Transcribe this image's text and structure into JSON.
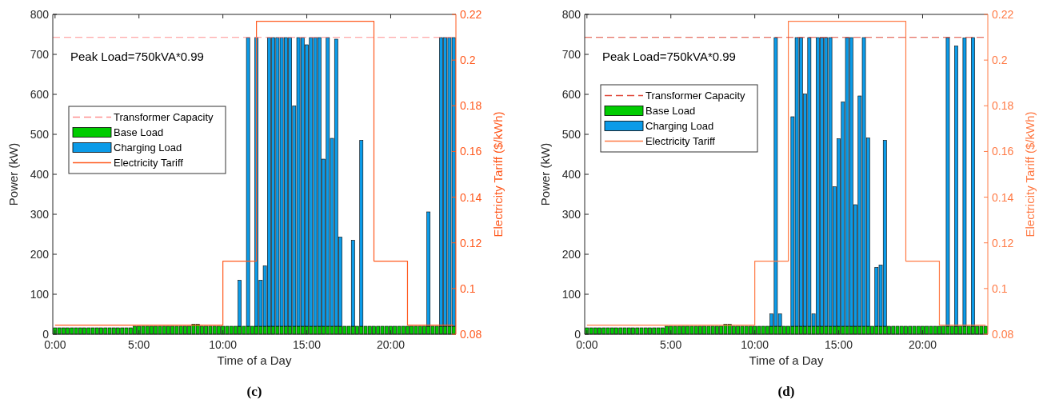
{
  "chart_data": [
    {
      "type": "bar",
      "title": "(c)",
      "xlabel": "Time of a Day",
      "ylabel": "Power (kW)",
      "y2label": "Electricity Tariff ($/kWh)",
      "stacked": true,
      "legend": "left",
      "annotations": [
        "Peak Load=750kVA*0.99"
      ],
      "categories": [
        "0:00",
        null,
        null,
        null,
        null,
        null,
        null,
        null,
        null,
        null,
        null,
        null,
        null,
        null,
        null,
        null,
        null,
        null,
        null,
        null,
        "5:00",
        null,
        null,
        null,
        null,
        null,
        null,
        null,
        null,
        null,
        null,
        null,
        null,
        null,
        null,
        null,
        null,
        null,
        null,
        null,
        "10:00",
        null,
        null,
        null,
        null,
        null,
        null,
        null,
        null,
        null,
        null,
        null,
        null,
        null,
        null,
        null,
        null,
        null,
        null,
        null,
        "15:00",
        null,
        null,
        null,
        null,
        null,
        null,
        null,
        null,
        null,
        null,
        null,
        null,
        null,
        null,
        null,
        null,
        null,
        null,
        null,
        "20:00",
        null,
        null,
        null,
        null,
        null,
        null,
        null,
        null,
        null,
        null,
        null,
        null,
        null,
        null,
        null
      ],
      "ylim": [
        0,
        800
      ],
      "yticks": [
        0,
        100,
        200,
        300,
        400,
        500,
        600,
        700,
        800
      ],
      "y2lim": [
        0.08,
        0.22
      ],
      "y2ticks": [
        0.08,
        0.1,
        0.12,
        0.14,
        0.16,
        0.18,
        0.2,
        0.22
      ],
      "ref_lines": [
        {
          "axis": "y",
          "value": 742.5,
          "label": "Transformer Capacity",
          "color": "#ff9090",
          "line_style": "dashed"
        }
      ],
      "series": [
        {
          "name": "Base Load",
          "color": "#00cc00",
          "values": [
            16,
            16,
            16,
            16,
            16,
            16,
            16,
            16,
            16,
            16,
            16,
            16,
            16,
            16,
            16,
            16,
            16,
            16,
            16,
            20,
            20,
            20,
            20,
            20,
            20,
            20,
            20,
            20,
            20,
            20,
            20,
            20,
            20,
            25,
            25,
            20,
            20,
            20,
            20,
            20,
            20,
            20,
            20,
            20,
            20,
            20,
            20,
            20,
            20,
            20,
            20,
            20,
            20,
            20,
            20,
            20,
            20,
            20,
            20,
            20,
            20,
            20,
            20,
            20,
            20,
            20,
            20,
            20,
            20,
            20,
            20,
            20,
            20,
            20,
            20,
            20,
            20,
            20,
            20,
            20,
            20,
            20,
            20,
            20,
            20,
            20,
            20,
            20,
            20,
            20,
            20,
            20,
            20,
            20,
            20,
            20
          ]
        },
        {
          "name": "Charging Load",
          "color": "#0b9be8",
          "values": [
            0,
            0,
            0,
            0,
            0,
            0,
            0,
            0,
            0,
            0,
            0,
            0,
            0,
            0,
            0,
            0,
            0,
            0,
            0,
            0,
            0,
            0,
            0,
            0,
            0,
            0,
            0,
            0,
            0,
            0,
            0,
            0,
            0,
            0,
            0,
            0,
            0,
            0,
            0,
            0,
            0,
            0,
            0,
            0,
            115,
            0,
            722,
            0,
            722,
            115,
            151,
            722,
            722,
            722,
            722,
            722,
            722,
            551,
            722,
            722,
            704,
            722,
            722,
            722,
            418,
            722,
            470,
            718,
            223,
            0,
            0,
            215,
            0,
            465,
            0,
            0,
            0,
            0,
            0,
            0,
            0,
            0,
            0,
            0,
            0,
            0,
            0,
            0,
            0,
            286,
            0,
            0,
            722,
            722,
            722,
            722
          ]
        },
        {
          "name": "Electricity Tariff",
          "type": "step",
          "axis": "y2",
          "color": "#ff5a1f",
          "line_style": "solid",
          "values": [
            0.084,
            0.084,
            0.084,
            0.084,
            0.084,
            0.084,
            0.084,
            0.084,
            0.084,
            0.084,
            0.084,
            0.084,
            0.084,
            0.084,
            0.084,
            0.084,
            0.084,
            0.084,
            0.084,
            0.084,
            0.084,
            0.084,
            0.084,
            0.084,
            0.084,
            0.084,
            0.084,
            0.084,
            0.084,
            0.084,
            0.084,
            0.084,
            0.084,
            0.084,
            0.084,
            0.084,
            0.084,
            0.084,
            0.084,
            0.084,
            0.112,
            0.112,
            0.112,
            0.112,
            0.112,
            0.112,
            0.112,
            0.112,
            0.217,
            0.217,
            0.217,
            0.217,
            0.217,
            0.217,
            0.217,
            0.217,
            0.217,
            0.217,
            0.217,
            0.217,
            0.217,
            0.217,
            0.217,
            0.217,
            0.217,
            0.217,
            0.217,
            0.217,
            0.217,
            0.217,
            0.217,
            0.217,
            0.217,
            0.217,
            0.217,
            0.217,
            0.112,
            0.112,
            0.112,
            0.112,
            0.112,
            0.112,
            0.112,
            0.112,
            0.084,
            0.084,
            0.084,
            0.084,
            0.084,
            0.084,
            0.084,
            0.084,
            0.084,
            0.084,
            0.084,
            0.084
          ]
        }
      ]
    },
    {
      "type": "bar",
      "title": "(d)",
      "xlabel": "Time of a Day",
      "ylabel": "Power (kW)",
      "y2label": "Electricity Tariff ($/kWh)",
      "stacked": true,
      "legend": "top left",
      "annotations": [
        "Peak Load=750kVA*0.99"
      ],
      "categories": [
        "0:00",
        null,
        null,
        null,
        null,
        null,
        null,
        null,
        null,
        null,
        null,
        null,
        null,
        null,
        null,
        null,
        null,
        null,
        null,
        null,
        "5:00",
        null,
        null,
        null,
        null,
        null,
        null,
        null,
        null,
        null,
        null,
        null,
        null,
        null,
        null,
        null,
        null,
        null,
        null,
        null,
        "10:00",
        null,
        null,
        null,
        null,
        null,
        null,
        null,
        null,
        null,
        null,
        null,
        null,
        null,
        null,
        null,
        null,
        null,
        null,
        null,
        "15:00",
        null,
        null,
        null,
        null,
        null,
        null,
        null,
        null,
        null,
        null,
        null,
        null,
        null,
        null,
        null,
        null,
        null,
        null,
        null,
        "20:00",
        null,
        null,
        null,
        null,
        null,
        null,
        null,
        null,
        null,
        null,
        null,
        null,
        null,
        null,
        null
      ],
      "ylim": [
        0,
        800
      ],
      "yticks": [
        0,
        100,
        200,
        300,
        400,
        500,
        600,
        700,
        800
      ],
      "y2lim": [
        0.08,
        0.22
      ],
      "y2ticks": [
        0.08,
        0.1,
        0.12,
        0.14,
        0.16,
        0.18,
        0.2,
        0.22
      ],
      "ref_lines": [
        {
          "axis": "y",
          "value": 742.5,
          "label": "Transformer Capacity",
          "color": "#e0483a",
          "line_style": "dashed"
        }
      ],
      "series": [
        {
          "name": "Base Load",
          "color": "#00cc00",
          "values": [
            16,
            16,
            16,
            16,
            16,
            16,
            16,
            16,
            16,
            16,
            16,
            16,
            16,
            16,
            16,
            16,
            16,
            16,
            16,
            20,
            20,
            20,
            20,
            20,
            20,
            20,
            20,
            20,
            20,
            20,
            20,
            20,
            20,
            25,
            25,
            20,
            20,
            20,
            20,
            20,
            20,
            20,
            20,
            20,
            20,
            20,
            20,
            20,
            20,
            20,
            20,
            20,
            20,
            20,
            20,
            20,
            20,
            20,
            20,
            20,
            20,
            20,
            20,
            20,
            20,
            20,
            20,
            20,
            20,
            20,
            20,
            20,
            20,
            20,
            20,
            20,
            20,
            20,
            20,
            20,
            20,
            20,
            20,
            20,
            20,
            20,
            20,
            20,
            20,
            20,
            20,
            20,
            20,
            20,
            20,
            20
          ]
        },
        {
          "name": "Charging Load",
          "color": "#0b9be8",
          "values": [
            0,
            0,
            0,
            0,
            0,
            0,
            0,
            0,
            0,
            0,
            0,
            0,
            0,
            0,
            0,
            0,
            0,
            0,
            0,
            0,
            0,
            0,
            0,
            0,
            0,
            0,
            0,
            0,
            0,
            0,
            0,
            0,
            0,
            0,
            0,
            0,
            0,
            0,
            0,
            0,
            0,
            0,
            0,
            0,
            31,
            722,
            31,
            0,
            0,
            524,
            722,
            722,
            581,
            722,
            31,
            722,
            722,
            722,
            722,
            349,
            469,
            561,
            722,
            722,
            304,
            576,
            722,
            471,
            0,
            147,
            153,
            465,
            0,
            0,
            0,
            0,
            0,
            0,
            0,
            0,
            0,
            0,
            0,
            0,
            0,
            0,
            722,
            0,
            701,
            0,
            721,
            0,
            722,
            0,
            0,
            0
          ]
        },
        {
          "name": "Electricity Tariff",
          "type": "step",
          "axis": "y2",
          "color": "#ff7a45",
          "line_style": "solid",
          "values": [
            0.084,
            0.084,
            0.084,
            0.084,
            0.084,
            0.084,
            0.084,
            0.084,
            0.084,
            0.084,
            0.084,
            0.084,
            0.084,
            0.084,
            0.084,
            0.084,
            0.084,
            0.084,
            0.084,
            0.084,
            0.084,
            0.084,
            0.084,
            0.084,
            0.084,
            0.084,
            0.084,
            0.084,
            0.084,
            0.084,
            0.084,
            0.084,
            0.084,
            0.084,
            0.084,
            0.084,
            0.084,
            0.084,
            0.084,
            0.084,
            0.112,
            0.112,
            0.112,
            0.112,
            0.112,
            0.112,
            0.112,
            0.112,
            0.217,
            0.217,
            0.217,
            0.217,
            0.217,
            0.217,
            0.217,
            0.217,
            0.217,
            0.217,
            0.217,
            0.217,
            0.217,
            0.217,
            0.217,
            0.217,
            0.217,
            0.217,
            0.217,
            0.217,
            0.217,
            0.217,
            0.217,
            0.217,
            0.217,
            0.217,
            0.217,
            0.217,
            0.112,
            0.112,
            0.112,
            0.112,
            0.112,
            0.112,
            0.112,
            0.112,
            0.084,
            0.084,
            0.084,
            0.084,
            0.084,
            0.084,
            0.084,
            0.084,
            0.084,
            0.084,
            0.084,
            0.084
          ]
        }
      ]
    }
  ]
}
